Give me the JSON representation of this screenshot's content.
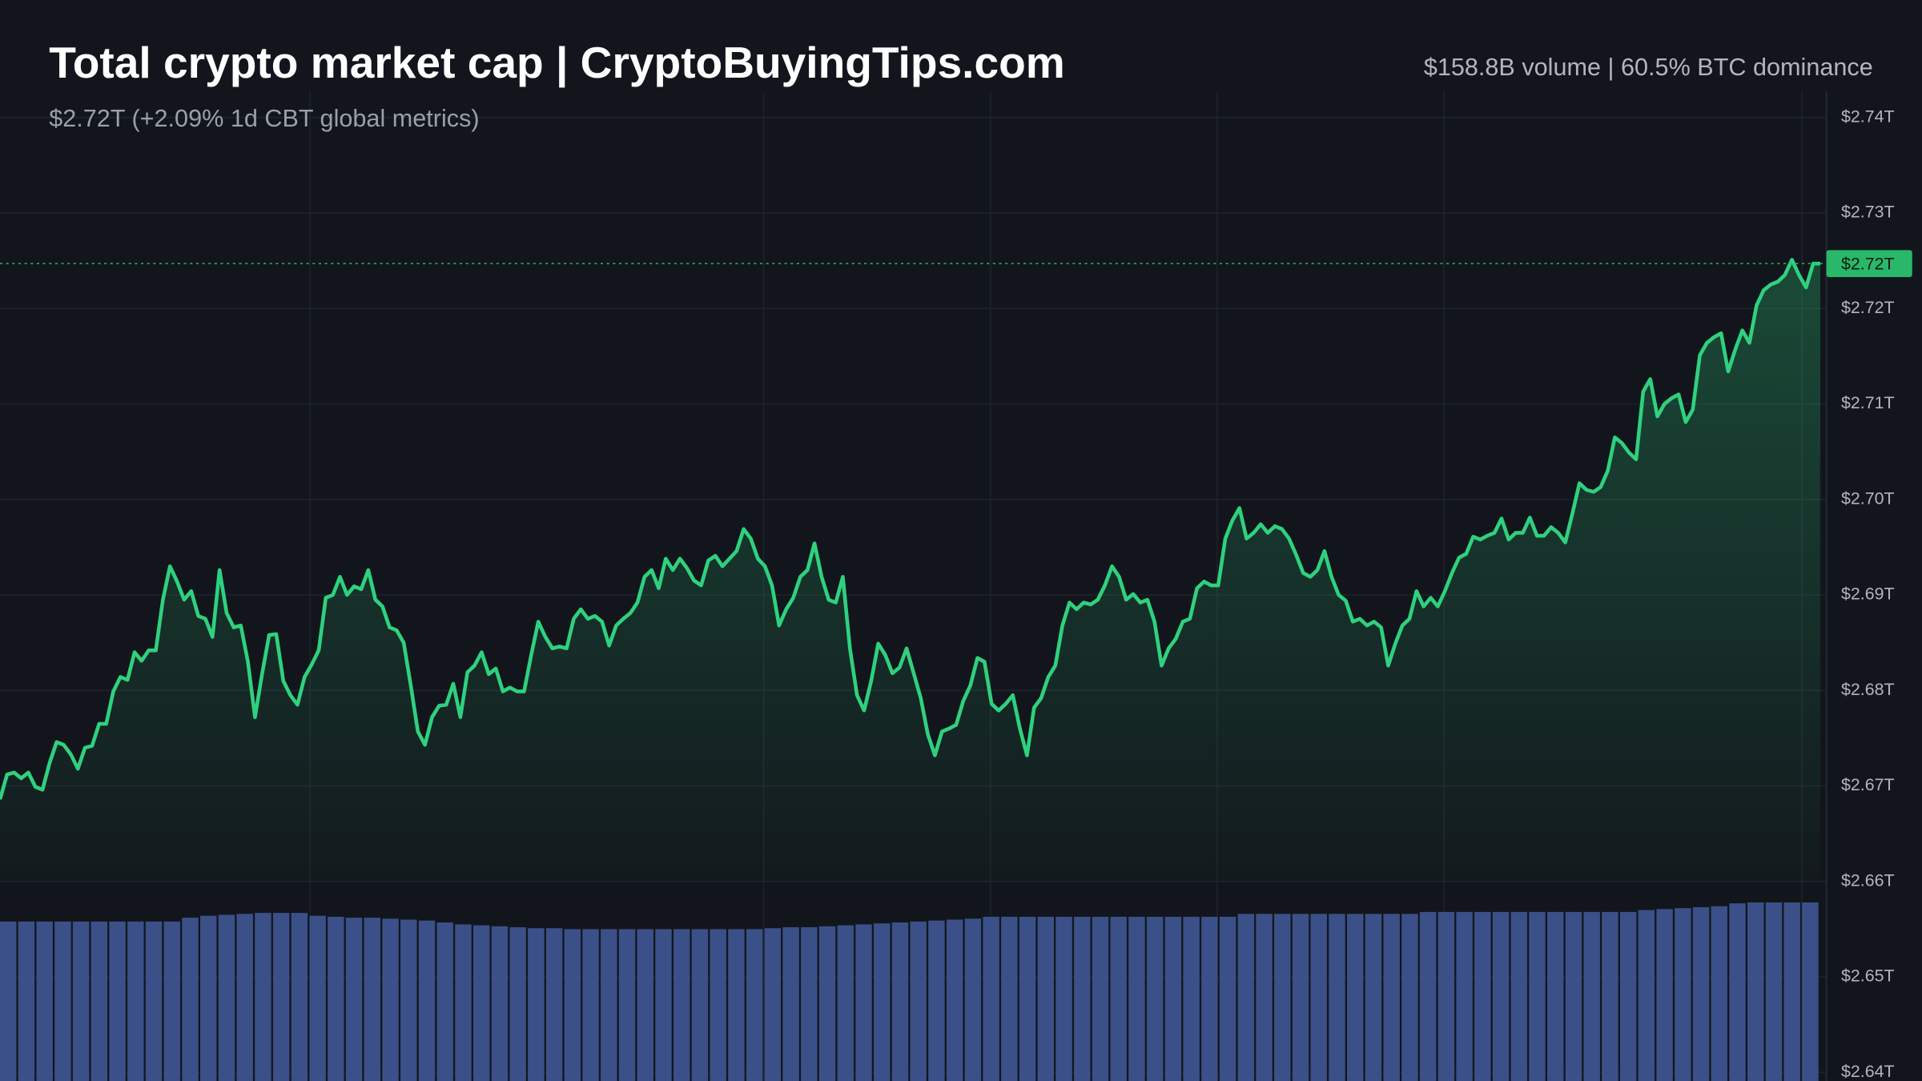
{
  "chart_data": {
    "type": "line",
    "title": "Total crypto market cap | CryptoBuyingTips.com",
    "subtitle": "$2.72T (+2.09% 1d CBT global metrics)",
    "annotation": "$158.8B volume | 60.5% BTC dominance",
    "color": "#2fd17e",
    "ylim": [
      2.6391,
      2.7523
    ],
    "yticks": [
      {
        "value": 2.74,
        "label": "$2.74T"
      },
      {
        "value": 2.73,
        "label": "$2.73T"
      },
      {
        "value": 2.72,
        "label": "$2.72T"
      },
      {
        "value": 2.71,
        "label": "$2.71T"
      },
      {
        "value": 2.7,
        "label": "$2.70T"
      },
      {
        "value": 2.69,
        "label": "$2.69T"
      },
      {
        "value": 2.68,
        "label": "$2.68T"
      },
      {
        "value": 2.67,
        "label": "$2.67T"
      },
      {
        "value": 2.66,
        "label": "$2.66T"
      },
      {
        "value": 2.65,
        "label": "$2.65T"
      },
      {
        "value": 2.64,
        "label": "$2.64T"
      }
    ],
    "grid": true,
    "last_price": {
      "value": 2.7247,
      "label": "$2.72T",
      "color": "#29b86a"
    },
    "values": [
      2.6686,
      2.6712,
      2.6714,
      2.6708,
      2.6714,
      2.6699,
      2.6696,
      2.6724,
      2.6746,
      2.6743,
      2.6733,
      2.6718,
      2.674,
      2.6742,
      2.6765,
      2.6765,
      2.6799,
      2.6814,
      2.6811,
      2.684,
      2.6831,
      2.6842,
      2.6842,
      2.6895,
      2.693,
      2.6914,
      2.6895,
      2.6904,
      2.6878,
      2.6875,
      2.6856,
      2.6926,
      2.6881,
      2.6866,
      2.6868,
      2.683,
      2.6772,
      2.6817,
      2.6858,
      2.6859,
      2.681,
      2.6795,
      2.6785,
      2.6814,
      2.6827,
      2.6842,
      2.6897,
      2.69,
      2.6919,
      2.69,
      2.6909,
      2.6906,
      2.6926,
      2.6895,
      2.6888,
      2.6866,
      2.6863,
      2.685,
      2.6805,
      2.6757,
      2.6743,
      2.6772,
      2.6784,
      2.6785,
      2.6807,
      2.6772,
      2.6819,
      2.6826,
      2.684,
      2.6817,
      2.6823,
      2.6799,
      2.6803,
      2.6799,
      2.6799,
      2.6837,
      2.6872,
      2.6856,
      2.6844,
      2.6846,
      2.6844,
      2.6875,
      2.6885,
      2.6875,
      2.6878,
      2.6872,
      2.6847,
      2.6868,
      2.6875,
      2.6881,
      2.6892,
      2.6919,
      2.6926,
      2.6907,
      2.6938,
      2.6926,
      2.6938,
      2.6928,
      2.6915,
      2.691,
      2.6936,
      2.6941,
      2.693,
      2.6938,
      2.6946,
      2.6969,
      2.6959,
      2.6938,
      2.693,
      2.691,
      2.6868,
      2.6885,
      2.6897,
      2.6919,
      2.6926,
      2.6954,
      2.6919,
      2.6895,
      2.6892,
      2.6919,
      2.6844,
      2.6795,
      2.6779,
      2.681,
      2.6849,
      2.6837,
      2.6818,
      2.6824,
      2.6844,
      2.6818,
      2.6792,
      2.6754,
      2.6732,
      2.6757,
      2.676,
      2.6764,
      2.6789,
      2.6805,
      2.6834,
      2.683,
      2.6786,
      2.6779,
      2.6786,
      2.6795,
      2.676,
      2.6732,
      2.6782,
      2.6792,
      2.6814,
      2.6826,
      2.6868,
      2.6892,
      2.6885,
      2.6892,
      2.689,
      2.6895,
      2.691,
      2.693,
      2.6919,
      2.6895,
      2.6901,
      2.6892,
      2.6895,
      2.6872,
      2.6826,
      2.6844,
      2.6854,
      2.6872,
      2.6875,
      2.6907,
      2.6914,
      2.691,
      2.691,
      2.6959,
      2.6978,
      2.6991,
      2.6959,
      2.6965,
      2.6974,
      2.6965,
      2.6972,
      2.6969,
      2.6959,
      2.6942,
      2.6923,
      2.6919,
      2.6926,
      2.6946,
      2.6919,
      2.69,
      2.6894,
      2.6872,
      2.6875,
      2.6868,
      2.6872,
      2.6866,
      2.6826,
      2.6849,
      2.6868,
      2.6875,
      2.6904,
      2.6888,
      2.6897,
      2.6888,
      2.6904,
      2.6923,
      2.6939,
      2.6943,
      2.6961,
      2.6958,
      2.6962,
      2.6965,
      2.698,
      2.6958,
      2.6965,
      2.6965,
      2.6981,
      2.6962,
      2.6962,
      2.6971,
      2.6965,
      2.6955,
      2.6985,
      2.7017,
      2.701,
      2.7008,
      2.7013,
      2.703,
      2.7065,
      2.7059,
      2.7049,
      2.7042,
      2.7113,
      2.7126,
      2.7087,
      2.71,
      2.7106,
      2.711,
      2.7081,
      2.7094,
      2.7151,
      2.7164,
      2.717,
      2.7174,
      2.7134,
      2.7157,
      2.7177,
      2.7164,
      2.7203,
      2.7219,
      2.7225,
      2.7228,
      2.7235,
      2.7251,
      2.7235,
      2.7222,
      2.7247,
      2.7247
    ],
    "volume": {
      "color": "#3b5088",
      "values": [
        2.6558,
        2.6558,
        2.6558,
        2.6558,
        2.6558,
        2.6558,
        2.6558,
        2.6558,
        2.6558,
        2.6558,
        2.6562,
        2.6564,
        2.6565,
        2.6566,
        2.6567,
        2.6567,
        2.6567,
        2.6564,
        2.6563,
        2.6562,
        2.6562,
        2.6561,
        2.656,
        2.6559,
        2.6557,
        2.6555,
        2.6554,
        2.6553,
        2.6552,
        2.6551,
        2.6551,
        2.655,
        2.655,
        2.655,
        2.655,
        2.655,
        2.655,
        2.655,
        2.655,
        2.655,
        2.655,
        2.655,
        2.6551,
        2.6552,
        2.6552,
        2.6553,
        2.6554,
        2.6555,
        2.6556,
        2.6557,
        2.6558,
        2.6559,
        2.656,
        2.6561,
        2.6563,
        2.6563,
        2.6563,
        2.6563,
        2.6563,
        2.6563,
        2.6563,
        2.6563,
        2.6563,
        2.6563,
        2.6563,
        2.6563,
        2.6563,
        2.6563,
        2.6566,
        2.6566,
        2.6566,
        2.6566,
        2.6566,
        2.6566,
        2.6566,
        2.6566,
        2.6566,
        2.6566,
        2.6568,
        2.6568,
        2.6568,
        2.6568,
        2.6568,
        2.6568,
        2.6568,
        2.6568,
        2.6568,
        2.6568,
        2.6568,
        2.6568,
        2.657,
        2.6571,
        2.6572,
        2.6573,
        2.6574,
        2.6577,
        2.6578,
        2.6578,
        2.6578,
        2.6578
      ]
    }
  }
}
